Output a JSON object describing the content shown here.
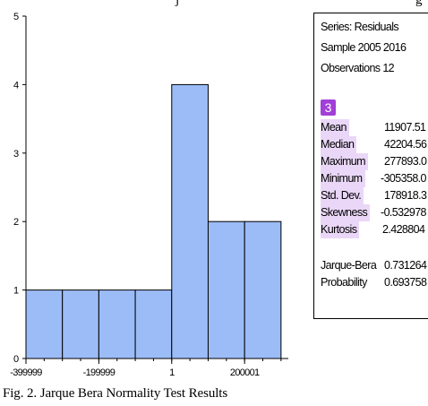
{
  "top_text": {
    "left": "j",
    "right": "g"
  },
  "chart_data": {
    "type": "bar",
    "title": "",
    "xlabel": "",
    "ylabel": "",
    "bin_edges": [
      -400000,
      -300000,
      -200000,
      -100000,
      0,
      100000,
      200000,
      300000
    ],
    "values": [
      1,
      1,
      1,
      1,
      4,
      2,
      2
    ],
    "ylim": [
      0,
      5
    ],
    "xlim": [
      -400000,
      320000
    ],
    "yticks": [
      0,
      1,
      2,
      3,
      4,
      5
    ],
    "xtick_labels": [
      {
        "value": -399999,
        "label": "-399999"
      },
      {
        "value": -199999,
        "label": "-199999"
      },
      {
        "value": 1,
        "label": "1"
      },
      {
        "value": 200001,
        "label": "200001"
      }
    ],
    "bar_color": "#9bbcf7",
    "grid": false
  },
  "stats": {
    "header": [
      "Series: Residuals",
      "Sample 2005 2016",
      "Observations 12"
    ],
    "badge": "3",
    "rows": [
      {
        "label": "Mean",
        "value": "11907.51"
      },
      {
        "label": "Median",
        "value": "42204.56"
      },
      {
        "label": "Maximum",
        "value": "277893.0"
      },
      {
        "label": "Minimum",
        "value": "-305358.0"
      },
      {
        "label": "Std. Dev.",
        "value": "178918.3"
      },
      {
        "label": "Skewness",
        "value": "-0.532978"
      },
      {
        "label": "Kurtosis",
        "value": "2.428804"
      }
    ],
    "test_rows": [
      {
        "label": "Jarque-Bera",
        "value": "0.731264"
      },
      {
        "label": "Probability",
        "value": "0.693758"
      }
    ]
  },
  "caption": "Fig. 2. Jarque Bera Normality Test Results",
  "highlight_color": "#ead7f8",
  "badge_color": "#a23fd8"
}
